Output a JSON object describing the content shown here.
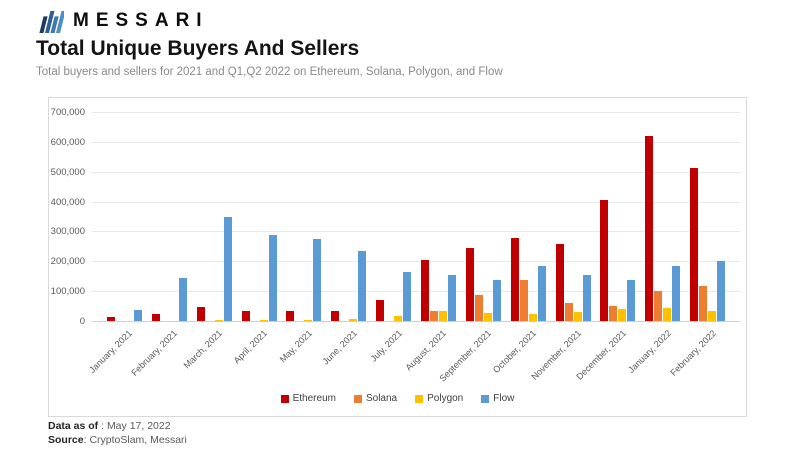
{
  "brand": {
    "logo_text": "MESSARI"
  },
  "header": {
    "title": "Total Unique Buyers And Sellers",
    "subtitle": "Total buyers and sellers for 2021 and Q1,Q2 2022 on Ethereum, Solana, Polygon, and Flow"
  },
  "chart_data": {
    "type": "bar",
    "title": "Total Unique Buyers And Sellers",
    "subtitle": "Total buyers and sellers for 2021 and Q1,Q2 2022 on Ethereum, Solana, Polygon, and Flow",
    "categories": [
      "January, 2021",
      "February, 2021",
      "March, 2021",
      "April, 2021",
      "May, 2021",
      "June, 2021",
      "July, 2021",
      "August, 2021",
      "September, 2021",
      "October, 2021",
      "November, 2021",
      "December, 2021",
      "January, 2022",
      "February, 2022"
    ],
    "series": [
      {
        "name": "Ethereum",
        "color": "#c00000",
        "values": [
          12000,
          25000,
          47000,
          33000,
          33000,
          35000,
          70000,
          205000,
          245000,
          278000,
          258000,
          405000,
          620000,
          512000
        ]
      },
      {
        "name": "Solana",
        "color": "#ed7d31",
        "values": [
          0,
          0,
          0,
          0,
          0,
          0,
          0,
          32000,
          88000,
          137000,
          60000,
          52000,
          102000,
          117000
        ]
      },
      {
        "name": "Polygon",
        "color": "#ffc000",
        "values": [
          0,
          0,
          3000,
          4000,
          5000,
          6000,
          18000,
          33000,
          26000,
          22000,
          30000,
          40000,
          45000,
          33000
        ]
      },
      {
        "name": "Flow",
        "color": "#5b9bd5",
        "values": [
          38000,
          145000,
          350000,
          288000,
          275000,
          235000,
          165000,
          155000,
          138000,
          185000,
          155000,
          137000,
          185000,
          200000
        ]
      }
    ],
    "xlabel": "",
    "ylabel": "",
    "ylim": [
      0,
      700000
    ],
    "ytick_step": 100000,
    "grid": true,
    "legend_position": "bottom-center",
    "x_label_rotation_deg": -45
  },
  "footer": {
    "data_as_of_label": "Data as of",
    "data_as_of_value": " : May 17, 2022",
    "source_label": "Source",
    "source_value": ": CryptoSlam, Messari"
  }
}
